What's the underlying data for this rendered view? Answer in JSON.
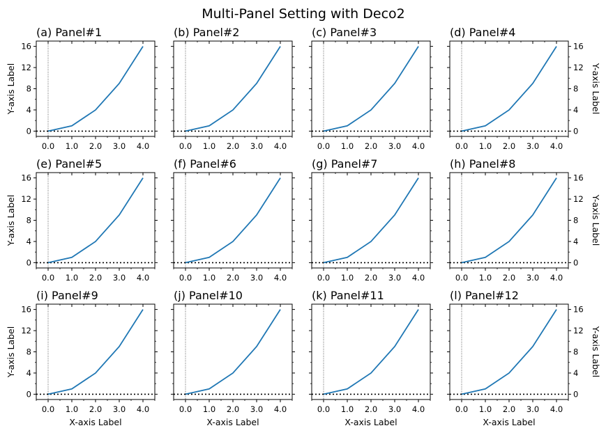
{
  "figure": {
    "title": "Multi-Panel Setting with Deco2",
    "series_color": "#1f77b4"
  },
  "chart_data": {
    "type": "line",
    "x": [
      0,
      1,
      2,
      3,
      4
    ],
    "y": [
      0,
      1,
      4,
      9,
      16
    ],
    "xlim": [
      -0.5,
      4.5
    ],
    "ylim": [
      -1,
      17
    ],
    "xticks": [
      "0.0",
      "1.0",
      "2.0",
      "3.0",
      "4.0"
    ],
    "yticks": [
      "0",
      "4",
      "8",
      "12",
      "16"
    ],
    "xlabel": "X-axis Label",
    "ylabel": "Y-axis Label",
    "reference_lines": {
      "horizontal_y": 0,
      "vertical_x": 0
    },
    "grid": false,
    "panels": [
      {
        "title": "(a) Panel#1"
      },
      {
        "title": "(b) Panel#2"
      },
      {
        "title": "(c) Panel#3"
      },
      {
        "title": "(d) Panel#4"
      },
      {
        "title": "(e) Panel#5"
      },
      {
        "title": "(f) Panel#6"
      },
      {
        "title": "(g) Panel#7"
      },
      {
        "title": "(h) Panel#8"
      },
      {
        "title": "(i) Panel#9"
      },
      {
        "title": "(j) Panel#10"
      },
      {
        "title": "(k) Panel#11"
      },
      {
        "title": "(l) Panel#12"
      }
    ]
  }
}
